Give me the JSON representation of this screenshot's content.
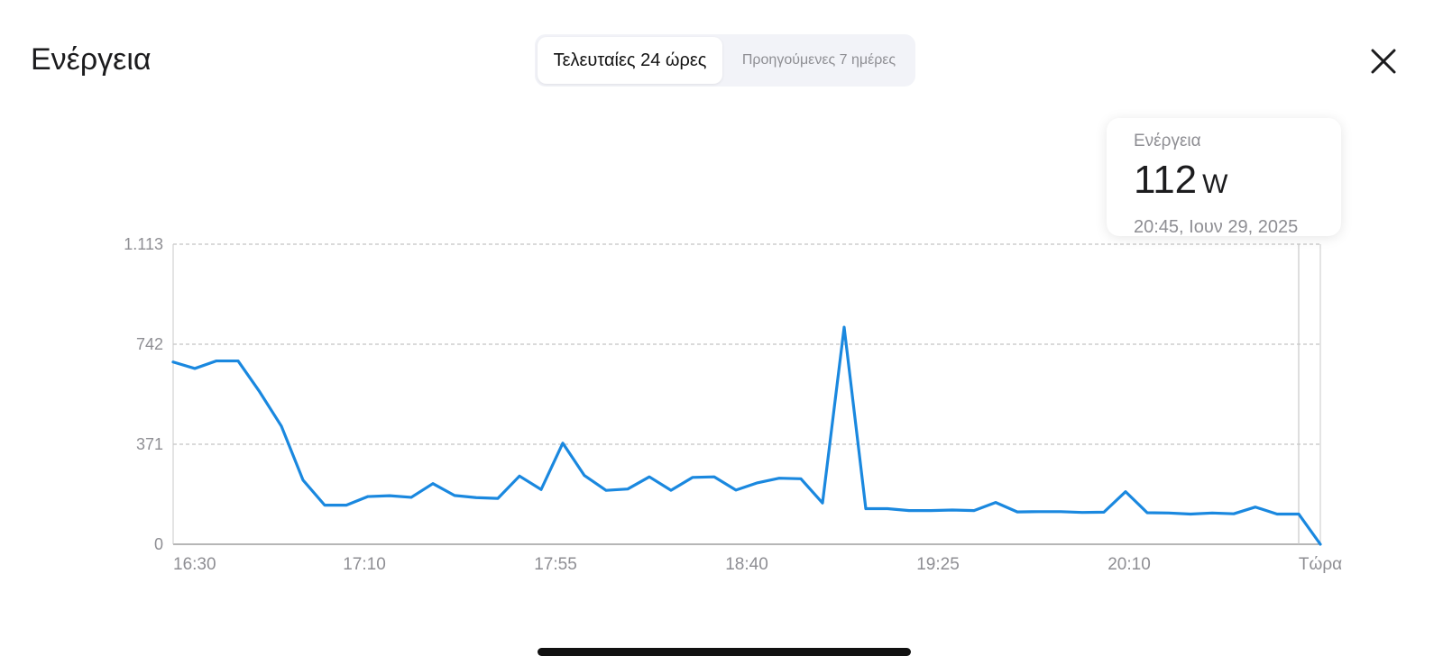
{
  "header": {
    "title": "Ενέργεια",
    "tabs": [
      {
        "label": "Τελευταίες 24 ώρες",
        "active": true
      },
      {
        "label": "Προηγούμενες 7 ημέρες",
        "active": false
      }
    ],
    "close_icon": "close-icon"
  },
  "tooltip": {
    "label": "Ενέργεια",
    "value": "112",
    "unit": "W",
    "date": "20:45, Ιουν 29, 2025"
  },
  "colors": {
    "line": "#1a88df",
    "grid": "#b5b5b5",
    "axis_text": "#8e8e93"
  },
  "chart_data": {
    "type": "line",
    "ylim": [
      0,
      1113
    ],
    "yticks": [
      0,
      371,
      742,
      1113
    ],
    "ytick_labels": [
      "0",
      "371",
      "742",
      "1.113"
    ],
    "xtick_labels": [
      "16:30",
      "17:10",
      "17:55",
      "18:40",
      "19:25",
      "20:10",
      "Τώρα"
    ],
    "grid": true,
    "series": [
      {
        "values": [
          676,
          652,
          680,
          680,
          565,
          438,
          238,
          145,
          145,
          177,
          180,
          174,
          225,
          181,
          173,
          170,
          253,
          203,
          375,
          255,
          200,
          205,
          250,
          200,
          248,
          250,
          201,
          228,
          245,
          243,
          153,
          805,
          132,
          132,
          125,
          125,
          127,
          125,
          155,
          120,
          121,
          121,
          118,
          119,
          195,
          117,
          116,
          112,
          116,
          113,
          138,
          112,
          112,
          0
        ]
      }
    ],
    "selected_value": 112
  }
}
